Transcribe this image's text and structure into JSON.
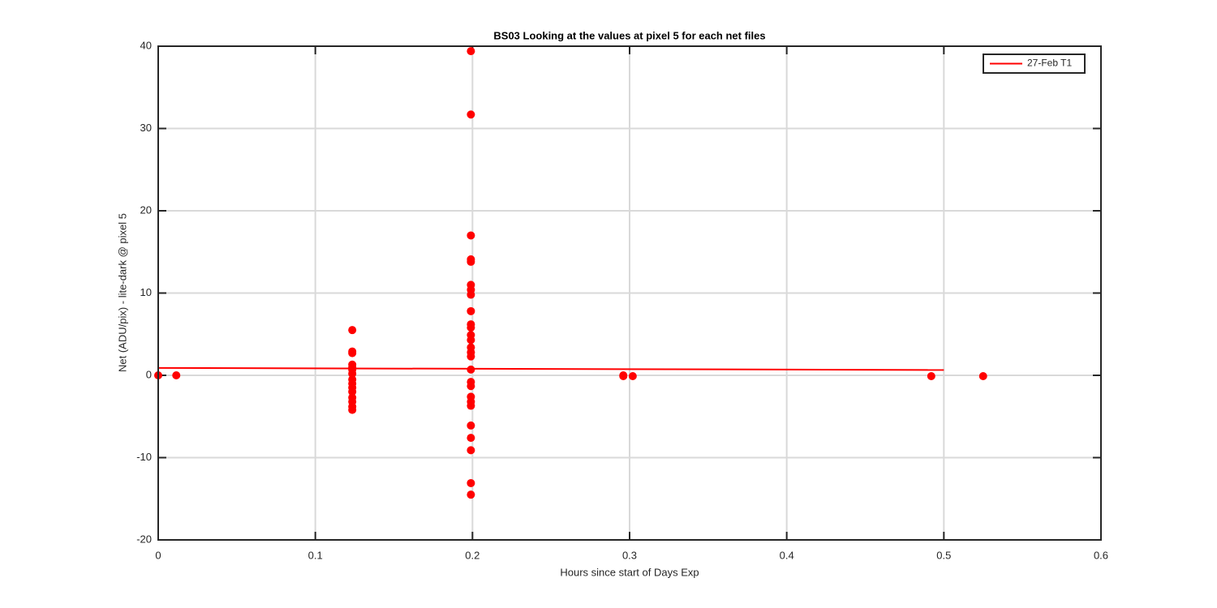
{
  "chart_data": {
    "type": "scatter",
    "title": "BS03  Looking at the values at pixel 5 for each net files",
    "xlabel": "Hours since start of Days Exp",
    "ylabel": "Net (ADU/pix) - lite-dark @ pixel 5",
    "xlim": [
      0,
      0.6
    ],
    "xticks": [
      0,
      0.1,
      0.2,
      0.3,
      0.4,
      0.5,
      0.6
    ],
    "ylim": [
      -20,
      40
    ],
    "yticks": [
      -20,
      -10,
      0,
      10,
      20,
      30,
      40
    ],
    "grid": true,
    "legend_position": "top-right",
    "series": [
      {
        "color": "#ff0000",
        "style": "markers",
        "x": [
          0,
          0.0115,
          0.1235,
          0.1235,
          0.1235,
          0.1235,
          0.1235,
          0.1235,
          0.1235,
          0.1235,
          0.1235,
          0.1235,
          0.1235,
          0.1235,
          0.1235,
          0.1235,
          0.1235,
          0.199,
          0.199,
          0.199,
          0.199,
          0.199,
          0.199,
          0.199,
          0.199,
          0.199,
          0.199,
          0.199,
          0.199,
          0.199,
          0.199,
          0.199,
          0.199,
          0.199,
          0.199,
          0.199,
          0.199,
          0.199,
          0.199,
          0.199,
          0.199,
          0.199,
          0.199,
          0.199,
          0.296,
          0.296,
          0.302,
          0.492,
          0.525
        ],
        "values": [
          0,
          0,
          5.5,
          2.9,
          2.7,
          1.3,
          1.0,
          0.7,
          0.2,
          -0.5,
          -1,
          -1.5,
          -2,
          -2.7,
          -3.2,
          -3.8,
          -4.2,
          39.4,
          31.7,
          17,
          14.1,
          13.8,
          11,
          10.4,
          9.8,
          7.8,
          6.2,
          5.8,
          4.9,
          4.3,
          3.4,
          2.8,
          2.3,
          0.7,
          -0.8,
          -1.3,
          -2.6,
          -3.2,
          -3.7,
          -6.1,
          -7.6,
          -9.1,
          -13.1,
          -14.5,
          0,
          -0.1,
          -0.1,
          -0.1,
          -0.1
        ]
      },
      {
        "name": "27-Feb T1",
        "color": "#ff0000",
        "style": "line",
        "x": [
          0,
          0.5
        ],
        "values": [
          0.9,
          0.65
        ]
      }
    ]
  }
}
